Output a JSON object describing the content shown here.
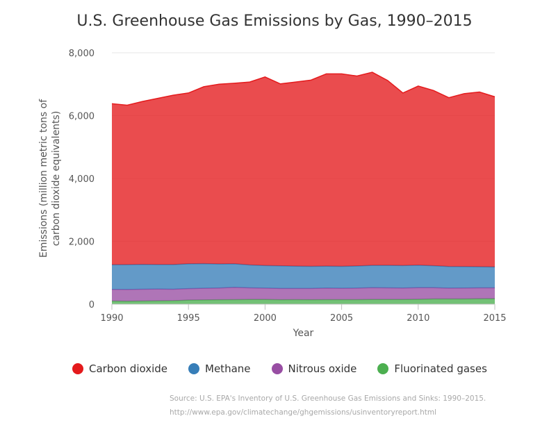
{
  "chart_data": {
    "type": "area",
    "stacked": true,
    "title": "U.S. Greenhouse Gas Emissions by Gas, 1990–2015",
    "xlabel": "Year",
    "ylabel": "Emissions (million metric tons of carbon dioxide equivalents)",
    "ylabel_lines": [
      "Emissions (million metric tons of",
      "carbon dioxide equivalents)"
    ],
    "xlim": [
      1990,
      2015
    ],
    "ylim": [
      0,
      8000
    ],
    "xticks": [
      1990,
      1995,
      2000,
      2005,
      2010,
      2015
    ],
    "yticks": [
      0,
      2000,
      4000,
      6000,
      8000
    ],
    "ytick_labels": [
      "0",
      "2,000",
      "4,000",
      "6,000",
      "8,000"
    ],
    "grid": true,
    "legend_position": "bottom",
    "x": [
      1990,
      1991,
      1992,
      1993,
      1994,
      1995,
      1996,
      1997,
      1998,
      1999,
      2000,
      2001,
      2002,
      2003,
      2004,
      2005,
      2006,
      2007,
      2008,
      2009,
      2010,
      2011,
      2012,
      2013,
      2014,
      2015
    ],
    "series": [
      {
        "name": "Fluorinated gases",
        "color": "#4caf50",
        "values": [
          100,
          95,
          100,
          105,
          110,
          130,
          135,
          140,
          145,
          148,
          150,
          140,
          145,
          140,
          145,
          145,
          145,
          150,
          150,
          150,
          155,
          165,
          165,
          165,
          170,
          175
        ]
      },
      {
        "name": "Nitrous oxide",
        "color": "#984ea3",
        "values": [
          370,
          372,
          375,
          375,
          365,
          365,
          370,
          375,
          390,
          370,
          360,
          360,
          355,
          360,
          365,
          360,
          365,
          375,
          370,
          365,
          370,
          360,
          345,
          350,
          350,
          345
        ]
      },
      {
        "name": "Methane",
        "color": "#377eb8",
        "values": [
          785,
          790,
          790,
          780,
          785,
          790,
          785,
          765,
          750,
          730,
          720,
          720,
          710,
          705,
          700,
          700,
          705,
          710,
          715,
          715,
          715,
          700,
          690,
          680,
          670,
          665
        ]
      },
      {
        "name": "Carbon dioxide",
        "color": "#e41a1c",
        "values": [
          5125,
          5075,
          5185,
          5290,
          5390,
          5435,
          5630,
          5720,
          5745,
          5822,
          6000,
          5790,
          5860,
          5925,
          6120,
          6125,
          6045,
          6145,
          5885,
          5490,
          5700,
          5575,
          5370,
          5505,
          5560,
          5415
        ]
      }
    ],
    "legend_order": [
      "Carbon dioxide",
      "Methane",
      "Nitrous oxide",
      "Fluorinated gases"
    ]
  },
  "legend": [
    {
      "label": "Carbon dioxide",
      "color": "#e41a1c"
    },
    {
      "label": "Methane",
      "color": "#377eb8"
    },
    {
      "label": "Nitrous oxide",
      "color": "#984ea3"
    },
    {
      "label": "Fluorinated gases",
      "color": "#4caf50"
    }
  ],
  "source": {
    "line1": "Source: U.S. EPA's Inventory of U.S. Greenhouse Gas Emissions and Sinks: 1990–2015.",
    "line2": "http://www.epa.gov/climatechange/ghgemissions/usinventoryreport.html"
  }
}
